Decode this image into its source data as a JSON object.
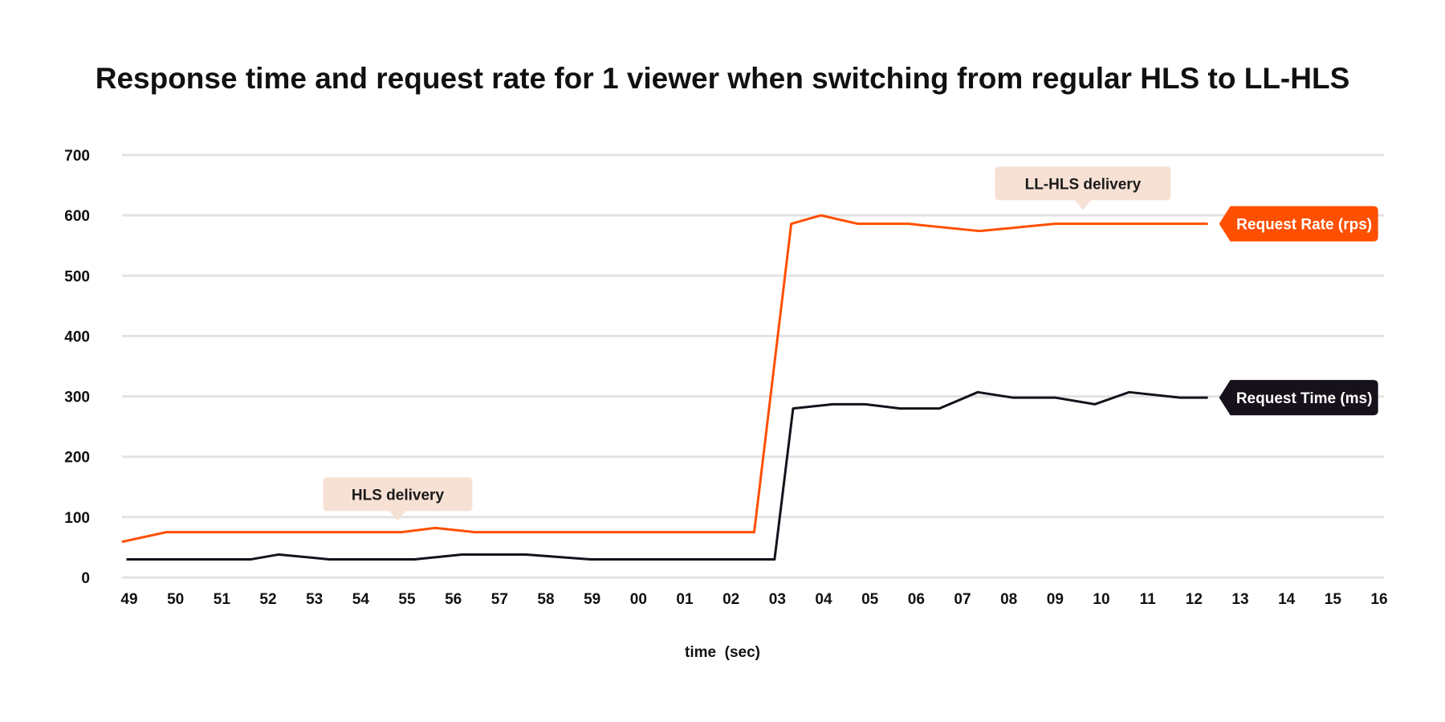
{
  "chart_data": {
    "type": "line",
    "title": "Response time and request rate for 1 viewer when switching from regular HLS to LL-HLS",
    "xlabel": "time  (sec)",
    "ylabel": "",
    "categories": [
      "49",
      "50",
      "51",
      "52",
      "53",
      "54",
      "55",
      "56",
      "57",
      "58",
      "59",
      "00",
      "01",
      "02",
      "03",
      "04",
      "05",
      "06",
      "07",
      "08",
      "09",
      "10",
      "11",
      "12",
      "13",
      "14",
      "15",
      "16"
    ],
    "yticks": [
      0,
      100,
      200,
      300,
      400,
      500,
      600,
      700
    ],
    "ylim": [
      0,
      700
    ],
    "grid": true,
    "series": [
      {
        "name": "Request Rate (rps)",
        "color": "#ff4f00",
        "x": [
          -0.16,
          0.8,
          5.88,
          6.61,
          7.47,
          13.5,
          14.3,
          14.94,
          15.74,
          16.83,
          18.37,
          20.0,
          23.3
        ],
        "values": [
          59,
          75,
          75,
          82,
          75,
          75,
          586,
          600,
          586,
          586,
          574,
          586,
          586
        ]
      },
      {
        "name": "Request Time (ms)",
        "color": "#16111a",
        "x": [
          -0.06,
          2.63,
          3.23,
          4.32,
          6.16,
          7.19,
          8.57,
          9.96,
          13.94,
          14.34,
          15.2,
          15.9,
          16.65,
          17.5,
          18.33,
          19.08,
          20.0,
          20.86,
          21.6,
          22.7,
          23.3
        ],
        "values": [
          30,
          30,
          38,
          30,
          30,
          38,
          38,
          30,
          30,
          280,
          287,
          287,
          280,
          280,
          307,
          298,
          298,
          287,
          307,
          298,
          298
        ]
      }
    ],
    "annotations": [
      {
        "text": "HLS delivery",
        "x": 5.8,
        "y": 110,
        "color": "#f7e1d4"
      },
      {
        "text": "LL-HLS delivery",
        "x": 20.6,
        "y": 625,
        "color": "#f7e1d4"
      }
    ]
  }
}
